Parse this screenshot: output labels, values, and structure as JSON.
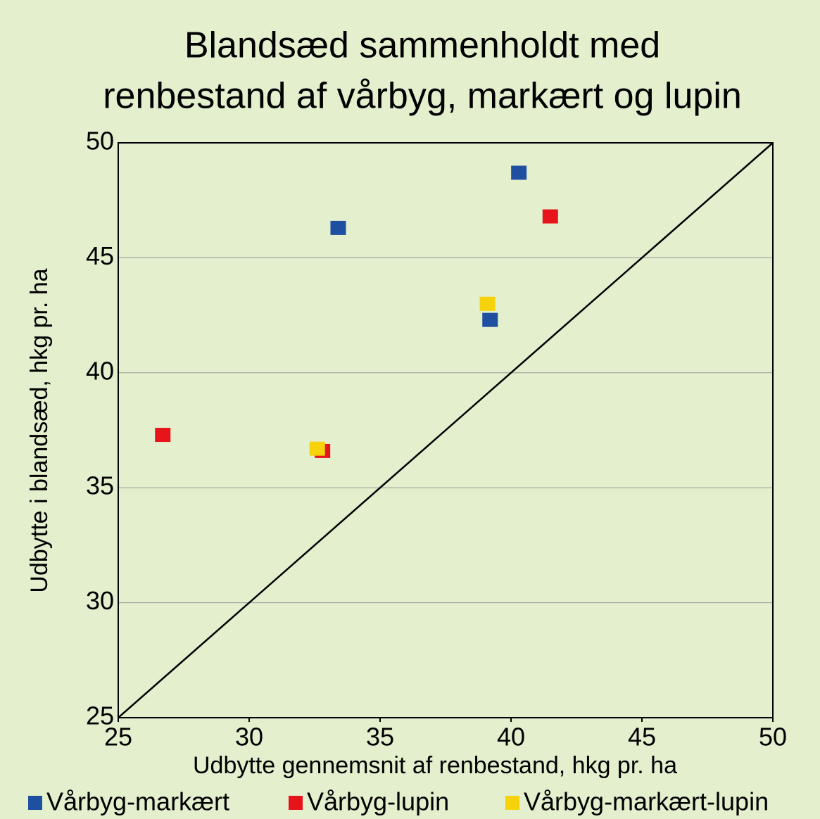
{
  "chart_data": {
    "type": "scatter",
    "title": [
      "Blandsæd sammenholdt med",
      "renbestand af vårbyg, markært og lupin"
    ],
    "xlabel": "Udbytte gennemsnit af renbestand, hkg pr. ha",
    "ylabel": "Udbytte i blandsæd, hkg pr. ha",
    "xlim": [
      25,
      50
    ],
    "xticks": [
      25,
      30,
      35,
      40,
      45,
      50
    ],
    "ylim": [
      25,
      50
    ],
    "yticks": [
      25,
      30,
      35,
      40,
      45,
      50
    ],
    "grid": true,
    "series": [
      {
        "name": "Vårbyg-markært",
        "color": "#1f4fa0",
        "x": [
          33.4,
          40.3,
          39.2
        ],
        "values": [
          46.3,
          48.7,
          42.3
        ]
      },
      {
        "name": "Vårbyg-lupin",
        "color": "#e8141c",
        "x": [
          41.5,
          26.7,
          32.8
        ],
        "values": [
          46.8,
          37.3,
          36.6
        ]
      },
      {
        "name": "Vårbyg-markært-lupin",
        "color": "#f5d20a",
        "x": [
          39.1,
          32.6
        ],
        "values": [
          43.0,
          36.7
        ]
      }
    ]
  }
}
